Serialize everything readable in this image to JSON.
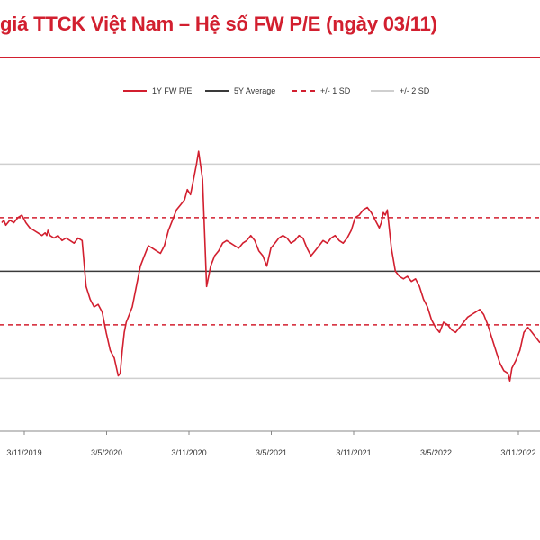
{
  "title": "giá TTCK Việt Nam – Hệ số FW P/E  (ngày 03/11)",
  "legend": {
    "fwpe": "1Y FW P/E",
    "avg": "5Y Average",
    "sd1": "+/- 1 SD",
    "sd2": "+/- 2 SD"
  },
  "colors": {
    "title": "#d21f2f",
    "series": "#d21f2f",
    "average": "#3a3a3a",
    "sd1": "#d21f2f",
    "sd2": "#cfcfcf"
  },
  "chart_data": {
    "type": "line",
    "title": "",
    "xlabel": "",
    "ylabel": "",
    "grid": false,
    "legend_position": "top",
    "x_tick_labels": [
      "3/11/2019",
      "3/5/2020",
      "3/11/2020",
      "3/5/2021",
      "3/11/2021",
      "3/5/2022",
      "3/11/2022"
    ],
    "reference_lines": [
      {
        "name": "+2 SD",
        "value": 0.78,
        "style": "solid-gray"
      },
      {
        "name": "+1 SD",
        "value": 0.57,
        "style": "dashed-red"
      },
      {
        "name": "5Y Average",
        "value": 0.36,
        "style": "solid-dark"
      },
      {
        "name": "-1 SD",
        "value": 0.15,
        "style": "dashed-red"
      },
      {
        "name": "-2 SD",
        "value": -0.06,
        "style": "solid-gray"
      }
    ],
    "series": [
      {
        "name": "1Y FW P/E",
        "x": [
          0,
          0.05,
          0.1,
          0.2,
          0.3,
          0.4,
          0.5,
          0.6,
          0.7,
          0.8,
          0.9,
          1.0,
          1.08,
          1.12,
          1.15,
          1.2,
          1.3,
          1.4,
          1.5,
          1.6,
          1.7,
          1.8,
          1.9,
          2.0,
          2.1,
          2.2,
          2.3,
          2.4,
          2.5,
          2.6,
          2.7,
          2.8,
          2.9,
          2.95,
          3.0,
          3.05,
          3.1,
          3.15,
          3.25,
          3.35,
          3.45,
          3.55,
          3.65,
          3.75,
          3.85,
          3.95,
          4.05,
          4.15,
          4.25,
          4.35,
          4.45,
          4.55,
          4.62,
          4.7,
          4.75,
          4.8,
          4.85,
          4.9,
          5.0,
          5.1,
          5.2,
          5.3,
          5.4,
          5.5,
          5.6,
          5.7,
          5.8,
          5.9,
          6.0,
          6.1,
          6.2,
          6.3,
          6.4,
          6.5,
          6.6,
          6.7,
          6.8,
          6.9,
          7.0,
          7.1,
          7.2,
          7.3,
          7.4,
          7.5,
          7.55,
          7.6,
          7.7,
          7.8,
          7.9,
          8.0,
          8.1,
          8.2,
          8.3,
          8.4,
          8.5,
          8.6,
          8.7,
          8.8,
          8.9,
          9.0,
          9.1,
          9.2,
          9.3,
          9.4,
          9.45,
          9.5,
          9.55,
          9.6,
          9.7,
          9.8,
          9.9,
          10.0,
          10.1,
          10.2,
          10.3,
          10.4,
          10.5,
          10.6,
          10.7,
          10.8,
          10.9,
          11.0,
          11.1,
          11.2,
          11.3,
          11.4,
          11.5,
          11.6,
          11.7,
          11.8,
          11.9,
          12.0,
          12.1,
          12.2,
          12.3,
          12.4,
          12.5,
          12.6,
          12.65,
          12.7,
          12.8,
          12.9,
          13.0,
          13.1,
          13.2,
          13.3,
          13.4
        ],
        "values": [
          0.55,
          0.56,
          0.54,
          0.56,
          0.55,
          0.57,
          0.58,
          0.55,
          0.53,
          0.52,
          0.51,
          0.5,
          0.51,
          0.5,
          0.52,
          0.5,
          0.49,
          0.5,
          0.48,
          0.49,
          0.48,
          0.47,
          0.49,
          0.48,
          0.3,
          0.25,
          0.22,
          0.23,
          0.2,
          0.12,
          0.05,
          0.02,
          -0.05,
          -0.04,
          0.05,
          0.12,
          0.16,
          0.18,
          0.22,
          0.3,
          0.38,
          0.42,
          0.46,
          0.45,
          0.44,
          0.43,
          0.46,
          0.52,
          0.56,
          0.6,
          0.62,
          0.64,
          0.68,
          0.66,
          0.7,
          0.74,
          0.78,
          0.83,
          0.72,
          0.3,
          0.38,
          0.42,
          0.44,
          0.47,
          0.48,
          0.47,
          0.46,
          0.45,
          0.47,
          0.48,
          0.5,
          0.48,
          0.44,
          0.42,
          0.38,
          0.45,
          0.47,
          0.49,
          0.5,
          0.49,
          0.47,
          0.48,
          0.5,
          0.49,
          0.47,
          0.45,
          0.42,
          0.44,
          0.46,
          0.48,
          0.47,
          0.49,
          0.5,
          0.48,
          0.47,
          0.49,
          0.52,
          0.57,
          0.58,
          0.6,
          0.61,
          0.59,
          0.56,
          0.53,
          0.55,
          0.59,
          0.58,
          0.6,
          0.45,
          0.36,
          0.34,
          0.33,
          0.34,
          0.32,
          0.33,
          0.3,
          0.25,
          0.22,
          0.17,
          0.14,
          0.12,
          0.16,
          0.15,
          0.13,
          0.12,
          0.14,
          0.16,
          0.18,
          0.19,
          0.2,
          0.21,
          0.19,
          0.15,
          0.1,
          0.05,
          0.0,
          -0.03,
          -0.04,
          -0.07,
          -0.02,
          0.01,
          0.05,
          0.12,
          0.14,
          0.12,
          0.1,
          0.08
        ]
      }
    ]
  }
}
